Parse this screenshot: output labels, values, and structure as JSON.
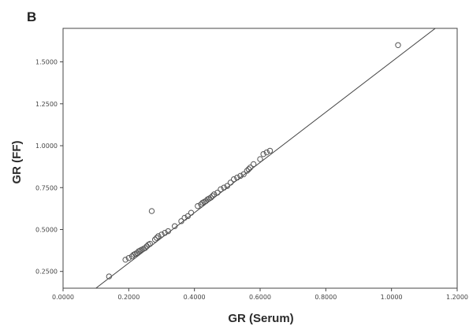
{
  "panel_label": "B",
  "chart_data": {
    "type": "scatter",
    "title": "",
    "xlabel": "GR (Serum)",
    "ylabel": "GR (FF)",
    "xlim": [
      0,
      1.2
    ],
    "ylim": [
      0.15,
      1.7
    ],
    "xticks": [
      0.0,
      0.2,
      0.4,
      0.6,
      0.8,
      1.0,
      1.2
    ],
    "xtick_labels": [
      "0.0000",
      "0.2000",
      "0.4000",
      "0.6000",
      "0.8000",
      "1.0000",
      "1.2000"
    ],
    "yticks": [
      0.25,
      0.5,
      0.75,
      1.0,
      1.25,
      1.5
    ],
    "ytick_labels": [
      "0.2500",
      "0.5000",
      "0.7500",
      "1.0000",
      "1.2500",
      "1.5000"
    ],
    "grid": false,
    "legend": "none",
    "marker": "open-circle",
    "colors": {
      "marker": "#555555",
      "fit_line": "#444444",
      "frame": "#444444"
    },
    "fit_line": {
      "slope": 1.5,
      "intercept": 0.0,
      "x_range": [
        0.0,
        1.2
      ]
    },
    "points": [
      [
        0.14,
        0.22
      ],
      [
        0.19,
        0.32
      ],
      [
        0.2,
        0.33
      ],
      [
        0.21,
        0.34
      ],
      [
        0.215,
        0.35
      ],
      [
        0.22,
        0.355
      ],
      [
        0.225,
        0.36
      ],
      [
        0.23,
        0.37
      ],
      [
        0.235,
        0.375
      ],
      [
        0.24,
        0.38
      ],
      [
        0.245,
        0.385
      ],
      [
        0.25,
        0.39
      ],
      [
        0.255,
        0.4
      ],
      [
        0.26,
        0.41
      ],
      [
        0.265,
        0.415
      ],
      [
        0.27,
        0.61
      ],
      [
        0.28,
        0.44
      ],
      [
        0.285,
        0.45
      ],
      [
        0.29,
        0.46
      ],
      [
        0.3,
        0.47
      ],
      [
        0.31,
        0.48
      ],
      [
        0.32,
        0.49
      ],
      [
        0.34,
        0.52
      ],
      [
        0.36,
        0.55
      ],
      [
        0.37,
        0.57
      ],
      [
        0.38,
        0.58
      ],
      [
        0.39,
        0.6
      ],
      [
        0.41,
        0.64
      ],
      [
        0.42,
        0.65
      ],
      [
        0.425,
        0.66
      ],
      [
        0.43,
        0.665
      ],
      [
        0.435,
        0.67
      ],
      [
        0.44,
        0.68
      ],
      [
        0.445,
        0.685
      ],
      [
        0.45,
        0.69
      ],
      [
        0.455,
        0.7
      ],
      [
        0.46,
        0.71
      ],
      [
        0.47,
        0.72
      ],
      [
        0.48,
        0.74
      ],
      [
        0.49,
        0.75
      ],
      [
        0.5,
        0.76
      ],
      [
        0.51,
        0.78
      ],
      [
        0.52,
        0.8
      ],
      [
        0.53,
        0.81
      ],
      [
        0.54,
        0.82
      ],
      [
        0.55,
        0.83
      ],
      [
        0.56,
        0.85
      ],
      [
        0.565,
        0.86
      ],
      [
        0.57,
        0.87
      ],
      [
        0.58,
        0.89
      ],
      [
        0.6,
        0.92
      ],
      [
        0.61,
        0.95
      ],
      [
        0.62,
        0.96
      ],
      [
        0.63,
        0.97
      ],
      [
        1.02,
        1.6
      ]
    ]
  }
}
